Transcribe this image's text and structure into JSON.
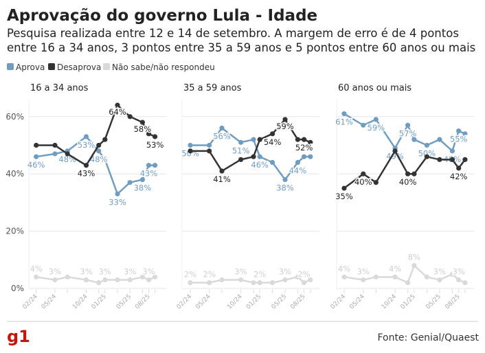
{
  "header": {
    "title": "Aprovação do governo Lula - Idade",
    "subtitle_lines": [
      "Pesquisa realizada entre 12 e 14 de setembro. A margem de erro é de 4 pontos",
      "entre 16 a 34 anos, 3 pontos entre 35 a 59 anos e 5 pontos entre 60 anos ou mais"
    ]
  },
  "legend": [
    {
      "name": "Aprova",
      "color": "#6f9dc1"
    },
    {
      "name": "Desaprova",
      "color": "#333333"
    },
    {
      "name": "Não sabe/não respondeu",
      "color": "#d9d9d9"
    }
  ],
  "footer": {
    "logo": "g1",
    "logo_color": "#c4170c",
    "source": "Fonte: Genial/Quaest"
  },
  "chart_data": [
    {
      "type": "line",
      "title": "16 a 34 anos",
      "x": [
        "02/24",
        "05/24",
        "07/24",
        "10/24",
        "12/24",
        "01/25",
        "03/25",
        "05/25",
        "07/25",
        "08/25",
        "09/25"
      ],
      "x_tick_labels": [
        "02/24",
        "05/24",
        "10/24",
        "01/25",
        "05/25",
        "08/25"
      ],
      "y_ticks": [
        "0%",
        "20%",
        "40%",
        "60%"
      ],
      "ylim": [
        0,
        66
      ],
      "grid": true,
      "series": [
        {
          "name": "Aprova",
          "values": [
            46,
            47,
            48,
            53,
            48,
            45,
            33,
            37,
            38,
            43,
            43
          ],
          "labeled": [
            0,
            2,
            3,
            4,
            6,
            8,
            9
          ]
        },
        {
          "name": "Desaprova",
          "values": [
            50,
            50,
            47,
            43,
            50,
            52,
            64,
            60,
            58,
            54,
            53
          ],
          "labeled": [
            3,
            6,
            8,
            10
          ]
        },
        {
          "name": "Não sabe/não respondeu",
          "values": [
            4,
            3,
            4,
            3,
            2,
            3,
            3,
            3,
            4,
            3,
            4
          ],
          "labeled": [
            0,
            1,
            3,
            5,
            7,
            9
          ]
        }
      ]
    },
    {
      "type": "line",
      "title": "35 a 59 anos",
      "x": [
        "02/24",
        "05/24",
        "07/24",
        "10/24",
        "12/24",
        "01/25",
        "03/25",
        "05/25",
        "07/25",
        "08/25",
        "09/25"
      ],
      "x_tick_labels": [
        "02/24",
        "05/24",
        "10/24",
        "01/25",
        "05/25",
        "08/25"
      ],
      "ylim": [
        0,
        66
      ],
      "grid": true,
      "series": [
        {
          "name": "Aprova",
          "values": [
            50,
            50,
            56,
            51,
            52,
            46,
            44,
            38,
            44,
            46,
            46
          ],
          "labeled": [
            0,
            2,
            3,
            5,
            7,
            8
          ]
        },
        {
          "name": "Desaprova",
          "values": [
            48,
            48,
            41,
            45,
            46,
            52,
            54,
            59,
            52,
            52,
            51
          ],
          "labeled": [
            2,
            6,
            7,
            9
          ]
        },
        {
          "name": "Não sabe/não respondeu",
          "values": [
            2,
            2,
            3,
            3,
            2,
            2,
            2,
            3,
            4,
            2,
            3
          ],
          "labeled": [
            0,
            1,
            3,
            5,
            7,
            9
          ]
        }
      ]
    },
    {
      "type": "line",
      "title": "60 anos ou mais",
      "x": [
        "02/24",
        "05/24",
        "07/24",
        "10/24",
        "12/24",
        "01/25",
        "03/25",
        "05/25",
        "07/25",
        "08/25",
        "09/25"
      ],
      "x_tick_labels": [
        "02/24",
        "05/24",
        "10/24",
        "01/25",
        "05/25",
        "08/25"
      ],
      "ylim": [
        0,
        66
      ],
      "grid": true,
      "series": [
        {
          "name": "Aprova",
          "values": [
            61,
            57,
            59,
            49,
            57,
            52,
            50,
            52,
            48,
            55,
            54
          ],
          "labeled": [
            0,
            2,
            3,
            4,
            6,
            8,
            9
          ]
        },
        {
          "name": "Desaprova",
          "values": [
            35,
            40,
            37,
            48,
            40,
            40,
            46,
            45,
            45,
            42,
            45
          ],
          "labeled": [
            0,
            1,
            4,
            9
          ]
        },
        {
          "name": "Não sabe/não respondeu",
          "values": [
            4,
            3,
            4,
            4,
            2,
            8,
            4,
            3,
            5,
            3,
            2
          ],
          "labeled": [
            0,
            1,
            3,
            5,
            7,
            9
          ]
        }
      ]
    }
  ]
}
